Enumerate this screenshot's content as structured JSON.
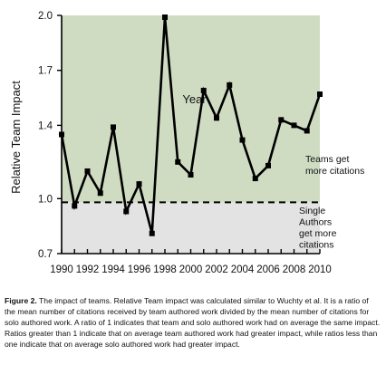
{
  "chart_data": {
    "type": "line",
    "xlabel": "Year",
    "ylabel": "Relative Team Impact",
    "x": [
      1990,
      1991,
      1992,
      1993,
      1994,
      1995,
      1996,
      1997,
      1998,
      1999,
      2000,
      2001,
      2002,
      2003,
      2004,
      2005,
      2006,
      2007,
      2008,
      2009,
      2010
    ],
    "series": [
      {
        "values": [
          1.35,
          0.96,
          1.15,
          1.03,
          1.39,
          0.93,
          1.08,
          0.81,
          1.99,
          1.2,
          1.13,
          1.59,
          1.44,
          1.62,
          1.32,
          1.11,
          1.18,
          1.43,
          1.4,
          1.37,
          1.57
        ]
      }
    ],
    "ylim": [
      0.7,
      2.0
    ],
    "xlim": [
      1990,
      2010
    ],
    "yticks": [
      0.7,
      1.0,
      1.4,
      1.7,
      2.0
    ],
    "ytick_labels": [
      "0.7",
      "1.0",
      "1.4",
      "1.7",
      "2.0"
    ],
    "xticks": [
      1990,
      1992,
      1994,
      1996,
      1998,
      2000,
      2002,
      2004,
      2006,
      2008,
      2010
    ],
    "xtick_labels": [
      "1990",
      "1992",
      "1994",
      "1996",
      "1998",
      "2000",
      "2002",
      "2004",
      "2006",
      "2008",
      "2010"
    ],
    "reference_line": 0.98,
    "colors": {
      "upper_region": "#cfdcc2",
      "lower_region": "#e3e3e3",
      "line": "#000000",
      "reference": "#000000"
    },
    "annotations": {
      "teams": [
        "Teams get",
        "more citations"
      ],
      "single": [
        "Single",
        "Authors",
        "get more",
        "citations"
      ]
    },
    "grid": false
  },
  "caption": {
    "label": "Figure 2.",
    "text": "  The impact of teams.  Relative Team impact was calculated similar to Wuchty et al.  It is a ratio of the mean number of citations received by team authored work divided by the mean number of citations for solo authored work.  A ratio of 1 indicates that team and solo authored work had on average the same impact.  Ratios greater than 1 indicate that on average team authored work had greater impact, while ratios less than one indicate that on average solo authored work had greater impact."
  }
}
